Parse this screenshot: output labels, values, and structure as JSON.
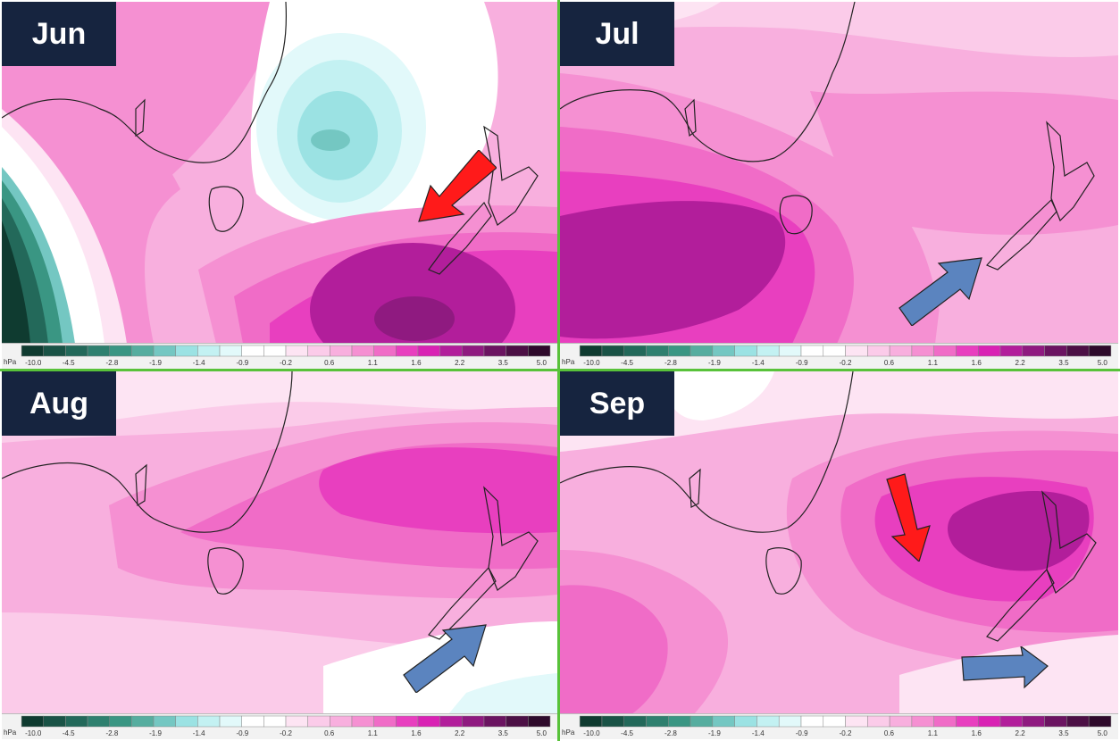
{
  "panels": [
    {
      "month": "Jun",
      "arrow": {
        "color": "red",
        "direction": "southwest",
        "target": "North Island"
      }
    },
    {
      "month": "Jul",
      "arrow": {
        "color": "blue",
        "direction": "northeast",
        "target": "South Island"
      }
    },
    {
      "month": "Aug",
      "arrow": {
        "color": "blue",
        "direction": "northeast",
        "target": "South Island"
      }
    },
    {
      "month": "Sep",
      "arrow": {
        "color": "red",
        "direction": "south",
        "target": "North Island"
      },
      "arrow2": {
        "color": "blue",
        "direction": "east",
        "target": "south of South Island"
      }
    }
  ],
  "legend": {
    "unit": "hPa",
    "labels": [
      "-10.0",
      "-4.5",
      "-2.8",
      "-1.9",
      "-1.4",
      "-0.9",
      "-0.2",
      "0.6",
      "1.1",
      "1.6",
      "2.2",
      "3.5",
      "5.0"
    ],
    "colors": [
      "#0f3b30",
      "#1a5346",
      "#23695a",
      "#2f806f",
      "#3a9683",
      "#56ad9f",
      "#74c7c2",
      "#9be2e3",
      "#c3f1f2",
      "#e2f9fa",
      "#ffffff",
      "#ffffff",
      "#fde4f3",
      "#fbcbe9",
      "#f8afde",
      "#f590d2",
      "#f06cc7",
      "#e83fbf",
      "#d922b4",
      "#b21e9b",
      "#8f1a80",
      "#6b1461",
      "#4c1045",
      "#2e0a2b"
    ]
  },
  "colors": {
    "label_bg": "#16243f",
    "arrow_red": "#ff1a1a",
    "arrow_blue": "#5b84bf",
    "divider": "#58c23a"
  }
}
